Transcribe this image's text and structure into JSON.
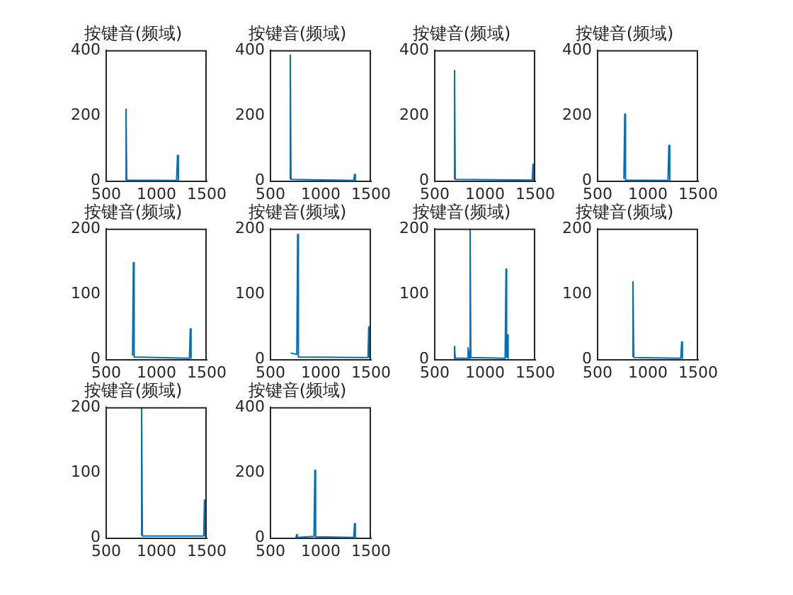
{
  "chart_data": [
    {
      "type": "line",
      "title": "按键音(频域)",
      "color": "#0072bd",
      "x": [
        690,
        697,
        704,
        1200,
        1209,
        1218
      ],
      "values": [
        5,
        220,
        3,
        2,
        78,
        2
      ],
      "xlim": [
        500,
        1500
      ],
      "ylim": [
        0,
        400
      ],
      "xticks": [
        500,
        1000,
        1500
      ],
      "yticks": [
        0,
        200,
        400
      ],
      "grid": false
    },
    {
      "type": "line",
      "title": "按键音(频域)",
      "color": "#0072bd",
      "x": [
        690,
        697,
        704,
        1328,
        1336,
        1344
      ],
      "values": [
        8,
        385,
        5,
        2,
        20,
        2
      ],
      "xlim": [
        500,
        1500
      ],
      "ylim": [
        0,
        400
      ],
      "xticks": [
        500,
        1000,
        1500
      ],
      "yticks": [
        0,
        200,
        400
      ],
      "grid": false
    },
    {
      "type": "line",
      "title": "按键音(频域)",
      "color": "#0072bd",
      "x": [
        690,
        697,
        704,
        1470,
        1477,
        1484
      ],
      "values": [
        8,
        338,
        5,
        3,
        51,
        3
      ],
      "xlim": [
        500,
        1500
      ],
      "ylim": [
        0,
        400
      ],
      "xticks": [
        500,
        1000,
        1500
      ],
      "yticks": [
        0,
        200,
        400
      ],
      "grid": false
    },
    {
      "type": "line",
      "title": "按键音(频域)",
      "color": "#0072bd",
      "x": [
        762,
        770,
        778,
        1200,
        1209,
        1218
      ],
      "values": [
        6,
        205,
        3,
        2,
        109,
        2
      ],
      "xlim": [
        500,
        1500
      ],
      "ylim": [
        0,
        400
      ],
      "xticks": [
        500,
        1000,
        1500
      ],
      "yticks": [
        0,
        200,
        400
      ],
      "grid": false
    },
    {
      "type": "line",
      "title": "按键音(频域)",
      "color": "#0072bd",
      "x": [
        762,
        770,
        778,
        1328,
        1336,
        1344
      ],
      "values": [
        6,
        148,
        4,
        2,
        47,
        2
      ],
      "xlim": [
        500,
        1500
      ],
      "ylim": [
        0,
        200
      ],
      "xticks": [
        500,
        1000,
        1500
      ],
      "yticks": [
        0,
        100,
        200
      ],
      "grid": false
    },
    {
      "type": "line",
      "title": "按键音(频域)",
      "color": "#0072bd",
      "x": [
        700,
        762,
        770,
        778,
        1470,
        1477,
        1484
      ],
      "values": [
        10,
        8,
        191,
        4,
        3,
        50,
        3
      ],
      "xlim": [
        500,
        1500
      ],
      "ylim": [
        0,
        200
      ],
      "xticks": [
        500,
        1000,
        1500
      ],
      "yticks": [
        0,
        100,
        200
      ],
      "grid": false
    },
    {
      "type": "line",
      "title": "按键音(频域)",
      "color": "#0072bd",
      "x": [
        690,
        697,
        704,
        825,
        832,
        845,
        852,
        859,
        1200,
        1209,
        1215,
        1222,
        1230
      ],
      "values": [
        2,
        20,
        2,
        2,
        18,
        2,
        200,
        3,
        2,
        138,
        3,
        38,
        2
      ],
      "xlim": [
        500,
        1500
      ],
      "ylim": [
        0,
        200
      ],
      "xticks": [
        500,
        1000,
        1500
      ],
      "yticks": [
        0,
        100,
        200
      ],
      "grid": false
    },
    {
      "type": "line",
      "title": "按键音(频域)",
      "color": "#0072bd",
      "x": [
        844,
        852,
        860,
        1328,
        1336,
        1344
      ],
      "values": [
        5,
        119,
        3,
        2,
        27,
        2
      ],
      "xlim": [
        500,
        1500
      ],
      "ylim": [
        0,
        200
      ],
      "xticks": [
        500,
        1000,
        1500
      ],
      "yticks": [
        0,
        100,
        200
      ],
      "grid": false
    },
    {
      "type": "line",
      "title": "按键音(频域)",
      "color": "#0072bd",
      "x": [
        844,
        852,
        860,
        1470,
        1477,
        1484
      ],
      "values": [
        5,
        200,
        3,
        3,
        58,
        3
      ],
      "xlim": [
        500,
        1500
      ],
      "ylim": [
        0,
        200
      ],
      "xticks": [
        500,
        1000,
        1500
      ],
      "yticks": [
        0,
        100,
        200
      ],
      "grid": false
    },
    {
      "type": "line",
      "title": "按键音(频域)",
      "color": "#0072bd",
      "x": [
        753,
        760,
        767,
        933,
        941,
        949,
        1328,
        1336,
        1344
      ],
      "values": [
        2,
        10,
        2,
        5,
        207,
        4,
        2,
        44,
        2
      ],
      "xlim": [
        500,
        1500
      ],
      "ylim": [
        0,
        400
      ],
      "xticks": [
        500,
        1000,
        1500
      ],
      "yticks": [
        0,
        200,
        400
      ],
      "grid": false
    }
  ]
}
